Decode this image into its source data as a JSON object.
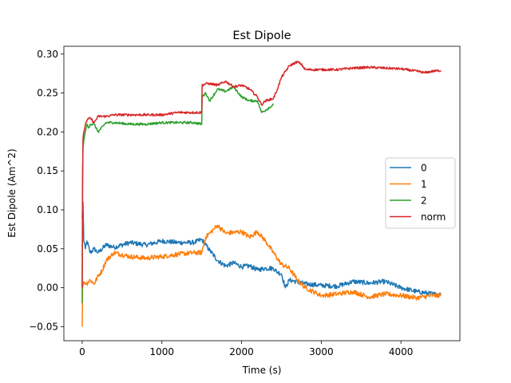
{
  "chart_data": {
    "type": "line",
    "title": "Est Dipole",
    "xlabel": "Time (s)",
    "ylabel": "Est Dipole (Am^2)",
    "xlim": [
      -230,
      4740
    ],
    "ylim": [
      -0.068,
      0.31
    ],
    "xticks": [
      0,
      1000,
      2000,
      3000,
      4000
    ],
    "xtick_labels": [
      "0",
      "1000",
      "2000",
      "3000",
      "4000"
    ],
    "yticks": [
      -0.05,
      0.0,
      0.05,
      0.1,
      0.15,
      0.2,
      0.25,
      0.3
    ],
    "ytick_labels": [
      "−0.05",
      "0.00",
      "0.05",
      "0.10",
      "0.15",
      "0.20",
      "0.25",
      "0.30"
    ],
    "grid": false,
    "legend_position": "center-right",
    "series": [
      {
        "name": "0",
        "color": "#1f77b4",
        "noise": 0.003,
        "x": [
          0,
          10,
          20,
          40,
          60,
          100,
          150,
          200,
          300,
          400,
          600,
          800,
          1000,
          1200,
          1400,
          1500,
          1600,
          1700,
          1800,
          1900,
          2000,
          2100,
          2200,
          2300,
          2400,
          2450,
          2500,
          2550,
          2600,
          2800,
          3000,
          3200,
          3400,
          3600,
          3800,
          4000,
          4200,
          4400,
          4500
        ],
        "y": [
          0.09,
          0.11,
          0.06,
          0.05,
          0.06,
          0.045,
          0.05,
          0.045,
          0.055,
          0.052,
          0.058,
          0.055,
          0.06,
          0.058,
          0.058,
          0.062,
          0.048,
          0.035,
          0.028,
          0.032,
          0.027,
          0.028,
          0.023,
          0.025,
          0.025,
          0.02,
          0.018,
          0.0,
          0.01,
          0.005,
          0.003,
          0.002,
          0.008,
          0.006,
          0.008,
          0.0,
          -0.005,
          -0.008,
          -0.009
        ]
      },
      {
        "name": "1",
        "color": "#ff7f0e",
        "noise": 0.003,
        "x": [
          0,
          5,
          10,
          20,
          50,
          100,
          150,
          200,
          250,
          300,
          400,
          600,
          800,
          1000,
          1200,
          1400,
          1500,
          1550,
          1600,
          1650,
          1700,
          1800,
          2000,
          2100,
          2200,
          2300,
          2400,
          2500,
          2600,
          2700,
          2800,
          3000,
          3200,
          3400,
          3600,
          3800,
          4000,
          4200,
          4400,
          4500
        ],
        "y": [
          -0.05,
          0.0,
          0.005,
          0.008,
          0.005,
          0.01,
          0.005,
          0.015,
          0.022,
          0.035,
          0.045,
          0.04,
          0.038,
          0.04,
          0.043,
          0.045,
          0.045,
          0.065,
          0.07,
          0.075,
          0.08,
          0.07,
          0.072,
          0.065,
          0.072,
          0.06,
          0.045,
          0.03,
          0.025,
          0.01,
          0.0,
          -0.01,
          -0.008,
          -0.005,
          -0.012,
          -0.008,
          -0.01,
          -0.013,
          -0.01,
          -0.01
        ]
      },
      {
        "name": "2",
        "color": "#2ca02c",
        "noise": 0.0015,
        "x": [
          0,
          5,
          10,
          20,
          40,
          60,
          80,
          100,
          150,
          200,
          300,
          400,
          600,
          800,
          1000,
          1200,
          1400,
          1500,
          1505,
          1550,
          1600,
          1700,
          1800,
          1900,
          2000,
          2100,
          2200,
          2250,
          2300,
          2400
        ],
        "y": [
          -0.02,
          0.15,
          0.18,
          0.19,
          0.2,
          0.21,
          0.205,
          0.21,
          0.21,
          0.2,
          0.212,
          0.212,
          0.21,
          0.21,
          0.212,
          0.212,
          0.212,
          0.21,
          0.245,
          0.25,
          0.24,
          0.255,
          0.252,
          0.258,
          0.245,
          0.24,
          0.24,
          0.225,
          0.228,
          0.235
        ]
      },
      {
        "name": "norm",
        "color": "#d62728",
        "noise": 0.0015,
        "x": [
          0,
          5,
          10,
          20,
          40,
          60,
          100,
          150,
          200,
          300,
          400,
          600,
          800,
          1000,
          1200,
          1400,
          1500,
          1505,
          1550,
          1600,
          1700,
          1800,
          1900,
          2000,
          2100,
          2200,
          2250,
          2300,
          2400,
          2450,
          2500,
          2600,
          2700,
          2750,
          2800,
          3000,
          3200,
          3400,
          3600,
          3800,
          4000,
          4200,
          4300,
          4400,
          4500
        ],
        "y": [
          0.0,
          0.135,
          0.19,
          0.2,
          0.21,
          0.215,
          0.218,
          0.212,
          0.22,
          0.22,
          0.222,
          0.222,
          0.222,
          0.222,
          0.225,
          0.225,
          0.225,
          0.26,
          0.262,
          0.262,
          0.26,
          0.265,
          0.258,
          0.26,
          0.255,
          0.245,
          0.235,
          0.24,
          0.243,
          0.255,
          0.27,
          0.285,
          0.29,
          0.287,
          0.28,
          0.28,
          0.28,
          0.282,
          0.283,
          0.282,
          0.281,
          0.278,
          0.276,
          0.278,
          0.279
        ]
      }
    ]
  }
}
